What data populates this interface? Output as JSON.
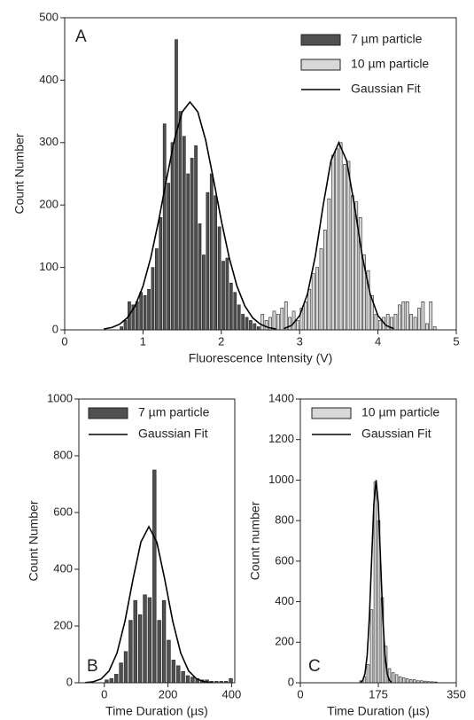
{
  "chart_data": [
    {
      "type": "histogram",
      "annotation": "A",
      "xlabel": "Fluorescence Intensity (V)",
      "ylabel": "Count Number",
      "xlim": [
        0,
        5
      ],
      "xticks": [
        0,
        1,
        2,
        3,
        4,
        5
      ],
      "ylim": [
        0,
        500
      ],
      "yticks": [
        0,
        100,
        200,
        300,
        400,
        500
      ],
      "series": [
        {
          "name": "7 µm particle",
          "color": "#505050",
          "bins": [
            0.7,
            0.75,
            0.8,
            0.85,
            0.9,
            0.95,
            1.0,
            1.05,
            1.1,
            1.15,
            1.2,
            1.25,
            1.3,
            1.35,
            1.4,
            1.45,
            1.5,
            1.55,
            1.6,
            1.65,
            1.7,
            1.75,
            1.8,
            1.85,
            1.9,
            1.95,
            2.0,
            2.05,
            2.1,
            2.15,
            2.2,
            2.25,
            2.3,
            2.35,
            2.4,
            2.45,
            2.5
          ],
          "values": [
            5,
            15,
            45,
            40,
            45,
            60,
            55,
            65,
            100,
            130,
            180,
            330,
            235,
            300,
            465,
            350,
            310,
            250,
            275,
            295,
            170,
            120,
            220,
            250,
            215,
            165,
            110,
            115,
            75,
            60,
            40,
            25,
            20,
            15,
            10,
            5
          ]
        },
        {
          "name": "10 µm particle",
          "color": "#d8d8d8",
          "bins": [
            2.5,
            2.55,
            2.6,
            2.65,
            2.7,
            2.75,
            2.8,
            2.85,
            2.9,
            2.95,
            3.0,
            3.05,
            3.1,
            3.15,
            3.2,
            3.25,
            3.3,
            3.35,
            3.4,
            3.45,
            3.5,
            3.55,
            3.6,
            3.65,
            3.7,
            3.75,
            3.8,
            3.85,
            3.9,
            3.95,
            4.0,
            4.05,
            4.1,
            4.15,
            4.2,
            4.25,
            4.3,
            4.35,
            4.4,
            4.45,
            4.5,
            4.55,
            4.6,
            4.65,
            4.7,
            4.75
          ],
          "values": [
            25,
            15,
            20,
            30,
            25,
            35,
            45,
            20,
            30,
            15,
            35,
            45,
            65,
            90,
            100,
            130,
            160,
            210,
            280,
            290,
            300,
            265,
            270,
            215,
            205,
            180,
            120,
            95,
            55,
            25,
            15,
            20,
            25,
            20,
            25,
            40,
            45,
            45,
            25,
            20,
            35,
            45,
            10,
            45,
            5
          ]
        },
        {
          "name": "Gaussian Fit",
          "type": "line",
          "color": "#000000",
          "x": [
            0.5,
            0.6,
            0.7,
            0.8,
            0.9,
            1.0,
            1.1,
            1.2,
            1.3,
            1.4,
            1.5,
            1.6,
            1.7,
            1.8,
            1.9,
            2.0,
            2.1,
            2.2,
            2.3,
            2.4,
            2.5,
            2.6,
            2.7,
            2.75,
            2.8,
            2.9,
            3.0,
            3.1,
            3.2,
            3.3,
            3.4,
            3.5,
            3.6,
            3.7,
            3.8,
            3.9,
            4.0,
            4.1,
            4.2
          ],
          "values": [
            1.4,
            3.7,
            8.9,
            19.3,
            38.4,
            70,
            116,
            175,
            241,
            304,
            349,
            365,
            349,
            304,
            241,
            175,
            116,
            70,
            38.4,
            19.3,
            8.9,
            3.7,
            1.4,
            null,
            1.9,
            7.3,
            22.7,
            57.4,
            118,
            199,
            271,
            300,
            271,
            199,
            118,
            57.4,
            22.7,
            7.3,
            1.9
          ]
        }
      ]
    },
    {
      "type": "histogram",
      "annotation": "B",
      "xlabel": "Time Duration (µs)",
      "ylabel": "Count Number",
      "xlim": [
        -80,
        410
      ],
      "xticks": [
        0,
        200,
        400
      ],
      "ylim": [
        0,
        1000
      ],
      "yticks": [
        0,
        200,
        400,
        600,
        800,
        1000
      ],
      "series": [
        {
          "name": "7 µm particle",
          "color": "#505050",
          "bins": [
            0,
            15,
            30,
            45,
            60,
            75,
            90,
            105,
            120,
            135,
            150,
            165,
            180,
            195,
            210,
            225,
            240,
            255,
            270,
            285,
            300,
            315,
            330,
            345,
            360,
            375,
            390,
            405
          ],
          "values": [
            10,
            15,
            30,
            70,
            110,
            220,
            290,
            240,
            310,
            300,
            750,
            220,
            290,
            150,
            80,
            60,
            40,
            25,
            20,
            15,
            10,
            10,
            5,
            5,
            5,
            5,
            15
          ]
        },
        {
          "name": "Gaussian Fit",
          "type": "line",
          "color": "#000000",
          "x": [
            -60,
            -35,
            -10,
            15,
            40,
            65,
            90,
            115,
            140,
            165,
            190,
            215,
            240,
            265,
            290,
            315,
            340
          ],
          "values": [
            0.7,
            3.5,
            13.4,
            41.6,
            105,
            217,
            364,
            496,
            550,
            496,
            364,
            217,
            105,
            41.6,
            13.4,
            3.5,
            0.7
          ]
        }
      ]
    },
    {
      "type": "histogram",
      "annotation": "C",
      "xlabel": "Time Duration (µs)",
      "ylabel": "Count number",
      "xlim": [
        0,
        350
      ],
      "xticks": [
        0,
        175,
        350
      ],
      "ylim": [
        0,
        1400
      ],
      "yticks": [
        0,
        200,
        400,
        600,
        800,
        1000,
        1200,
        1400
      ],
      "series": [
        {
          "name": "10 µm particle",
          "color": "#d8d8d8",
          "bins": [
            132,
            140,
            148,
            156,
            164,
            172,
            180,
            188,
            196,
            204,
            212,
            220,
            228,
            236,
            244,
            252,
            260,
            268,
            276,
            284,
            292,
            300,
            308
          ],
          "values": [
            10,
            30,
            90,
            360,
            990,
            800,
            420,
            180,
            70,
            50,
            40,
            30,
            25,
            20,
            15,
            15,
            10,
            10,
            8,
            6,
            5,
            4
          ]
        },
        {
          "name": "Gaussian Fit",
          "type": "line",
          "color": "#000000",
          "x": [
            135,
            140,
            145,
            150,
            155,
            160,
            165,
            170,
            175,
            180,
            185,
            190,
            195,
            200,
            205
          ],
          "values": [
            2.2,
            11.1,
            44,
            135,
            325,
            607,
            882,
            1000,
            882,
            607,
            325,
            135,
            44,
            11.1,
            2.2
          ]
        }
      ]
    }
  ]
}
